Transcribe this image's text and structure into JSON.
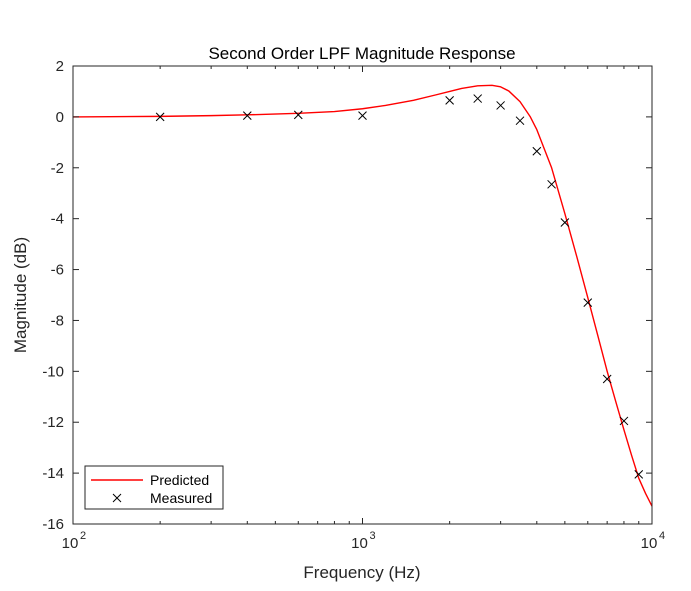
{
  "chart_data": {
    "type": "line",
    "title": "Second Order LPF Magnitude Response",
    "xlabel": "Frequency (Hz)",
    "ylabel": "Magnitude (dB)",
    "xscale": "log",
    "xlim": [
      100,
      10000
    ],
    "ylim": [
      -16,
      2
    ],
    "yticks": [
      2,
      0,
      -2,
      -4,
      -6,
      -8,
      -10,
      -12,
      -14,
      -16
    ],
    "xticks": [
      {
        "value": 100,
        "base": "10",
        "exp": "2"
      },
      {
        "value": 1000,
        "base": "10",
        "exp": "3"
      },
      {
        "value": 10000,
        "base": "10",
        "exp": "4"
      }
    ],
    "grid": false,
    "legend_position": "bottom-left",
    "series": [
      {
        "name": "Predicted",
        "style": "line",
        "color": "#ff0000",
        "x": [
          100,
          200,
          300,
          400,
          600,
          800,
          1000,
          1200,
          1500,
          1800,
          2000,
          2200,
          2500,
          2800,
          3000,
          3200,
          3500,
          3800,
          4000,
          4500,
          5000,
          5500,
          6000,
          6500,
          7000,
          7500,
          8000,
          8500,
          9000,
          9500,
          10000
        ],
        "y": [
          0.0,
          0.02,
          0.05,
          0.08,
          0.14,
          0.21,
          0.32,
          0.45,
          0.65,
          0.87,
          1.0,
          1.12,
          1.22,
          1.24,
          1.18,
          1.02,
          0.6,
          0.0,
          -0.5,
          -2.0,
          -3.8,
          -5.5,
          -7.1,
          -8.6,
          -10.0,
          -11.2,
          -12.3,
          -13.3,
          -14.2,
          -14.8,
          -15.3
        ]
      },
      {
        "name": "Measured",
        "style": "marker",
        "marker": "x",
        "color": "#000000",
        "x": [
          200,
          400,
          600,
          1000,
          2000,
          2500,
          3000,
          3500,
          4000,
          4500,
          5000,
          6000,
          7000,
          8000,
          9000
        ],
        "y": [
          0.0,
          0.05,
          0.08,
          0.05,
          0.65,
          0.72,
          0.45,
          -0.15,
          -1.35,
          -2.65,
          -4.15,
          -7.3,
          -10.3,
          -11.95,
          -14.05
        ]
      }
    ]
  }
}
